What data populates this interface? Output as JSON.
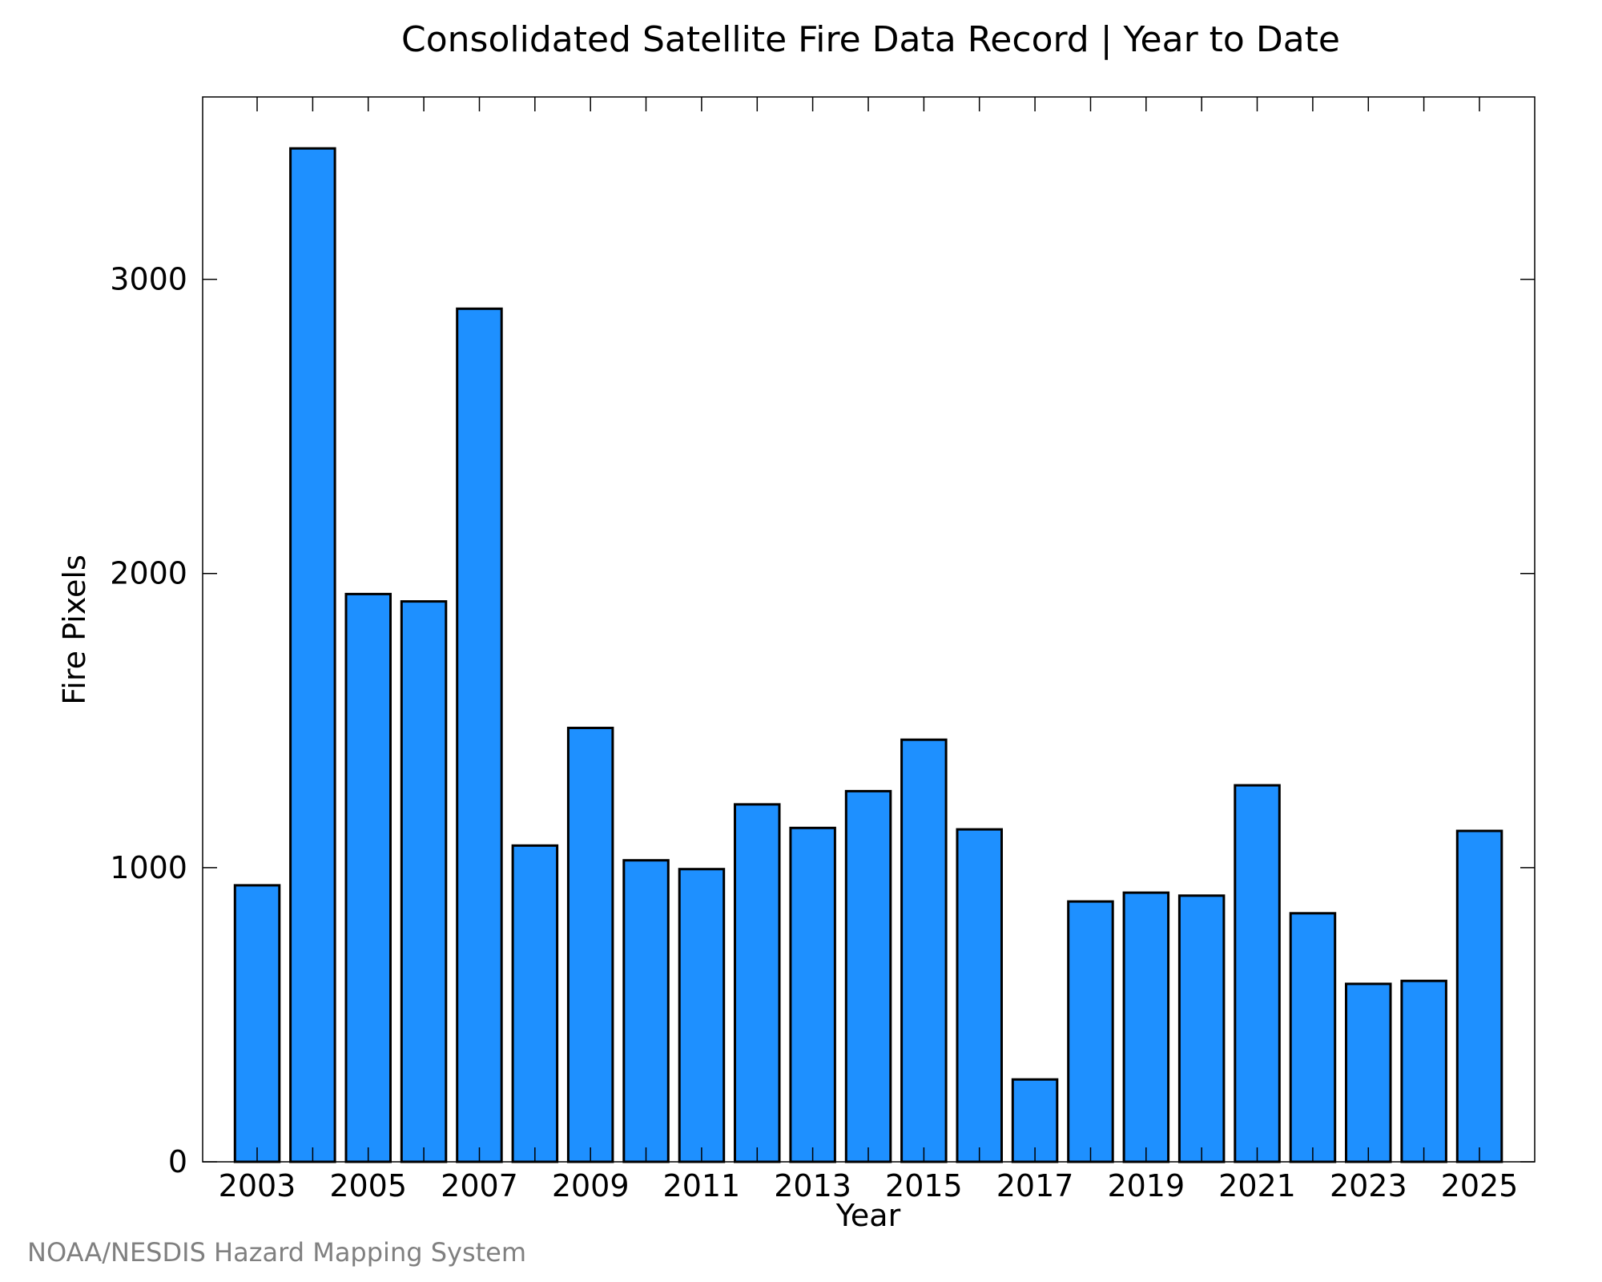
{
  "chart_data": {
    "type": "bar",
    "title": "Consolidated Satellite Fire Data Record | Year to Date",
    "xlabel": "Year",
    "ylabel": "Fire Pixels",
    "categories": [
      "2003",
      "2004",
      "2005",
      "2006",
      "2007",
      "2008",
      "2009",
      "2010",
      "2011",
      "2012",
      "2013",
      "2014",
      "2015",
      "2016",
      "2017",
      "2018",
      "2019",
      "2020",
      "2021",
      "2022",
      "2023",
      "2024",
      "2025"
    ],
    "values": [
      940,
      3445,
      1930,
      1905,
      2900,
      1075,
      1475,
      1025,
      995,
      1215,
      1135,
      1260,
      1435,
      1130,
      280,
      885,
      915,
      905,
      1280,
      845,
      605,
      615,
      1125
    ],
    "ylim": [
      0,
      3620
    ],
    "yticks": [
      0,
      1000,
      2000,
      3000
    ],
    "xtick_labels": [
      "2003",
      "2005",
      "2007",
      "2009",
      "2011",
      "2013",
      "2015",
      "2017",
      "2019",
      "2021",
      "2023",
      "2025"
    ],
    "grid": false,
    "legend": "none",
    "bar_color": "#1e90ff",
    "credit": "NOAA/NESDIS Hazard Mapping System"
  }
}
